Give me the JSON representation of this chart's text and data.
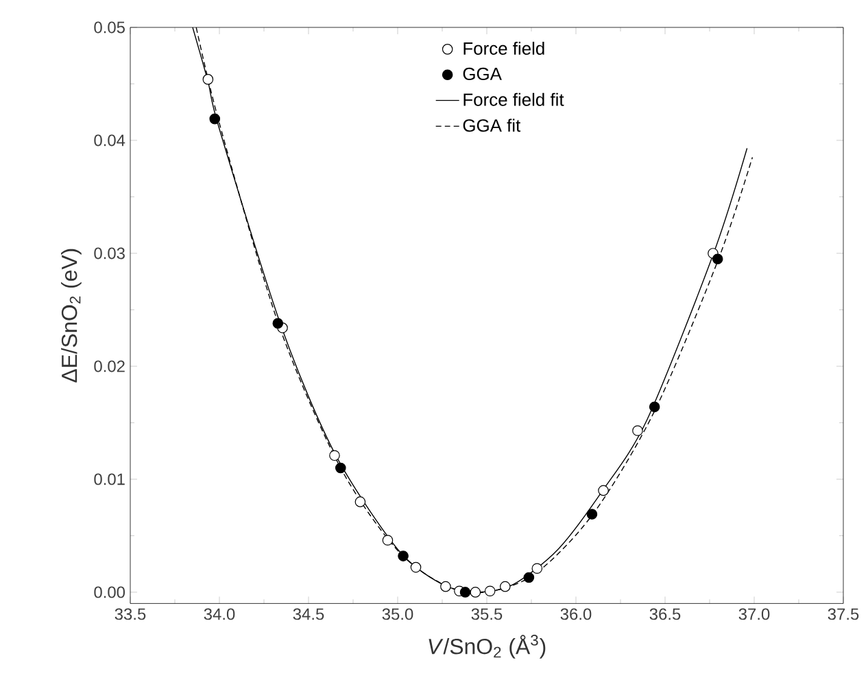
{
  "chart_data": {
    "type": "scatter",
    "xlabel": "*V*/SnO$_{2}$ (Å$^{3}$)",
    "ylabel": "ΔE/SnO$_{2}$ (eV)",
    "xlim": [
      33.5,
      37.5
    ],
    "ylim": [
      -0.001,
      0.05
    ],
    "xticks": [
      {
        "value": 33.5,
        "label": "33.5"
      },
      {
        "value": 34.0,
        "label": "34.0"
      },
      {
        "value": 34.5,
        "label": "34.5"
      },
      {
        "value": 35.0,
        "label": "35.0"
      },
      {
        "value": 35.5,
        "label": "35.5"
      },
      {
        "value": 36.0,
        "label": "36.0"
      },
      {
        "value": 36.5,
        "label": "36.5"
      },
      {
        "value": 37.0,
        "label": "37.0"
      },
      {
        "value": 37.5,
        "label": "37.5"
      }
    ],
    "yticks": [
      {
        "value": 0.0,
        "label": "0.00"
      },
      {
        "value": 0.01,
        "label": "0.01"
      },
      {
        "value": 0.02,
        "label": "0.02"
      },
      {
        "value": 0.03,
        "label": "0.03"
      },
      {
        "value": 0.04,
        "label": "0.04"
      },
      {
        "value": 0.05,
        "label": "0.05"
      }
    ],
    "legend": "top",
    "series": [
      {
        "name": "Force field",
        "type": "scatter",
        "marker": "circle",
        "color": "#ffffff",
        "x": [
          33.936,
          34.354,
          34.646,
          34.79,
          34.944,
          35.102,
          35.269,
          35.346,
          35.436,
          35.518,
          35.603,
          35.782,
          36.154,
          36.346,
          36.769
        ],
        "values": [
          0.0454,
          0.0234,
          0.0121,
          0.008,
          0.0046,
          0.0022,
          0.0005,
          0.0001,
          0.0,
          0.0001,
          0.0005,
          0.0021,
          0.009,
          0.0143,
          0.03
        ]
      },
      {
        "name": "GGA",
        "type": "scatter",
        "marker": "circle",
        "color": "#000000",
        "x": [
          33.974,
          34.328,
          34.68,
          35.031,
          35.379,
          35.736,
          36.09,
          36.441,
          36.795
        ],
        "values": [
          0.0419,
          0.0238,
          0.011,
          0.0032,
          0.0,
          0.0013,
          0.0069,
          0.0164,
          0.0295
        ]
      },
      {
        "name": "Force field fit",
        "type": "line",
        "marker": "none",
        "line_style": "solid",
        "color": "#000000",
        "x": [
          33.85,
          33.936,
          34.0,
          34.35,
          34.65,
          35.0,
          35.25,
          35.45,
          35.65,
          35.9,
          36.15,
          36.4,
          36.77,
          36.96
        ],
        "values": [
          0.05,
          0.0452,
          0.041,
          0.0234,
          0.0122,
          0.0038,
          0.0007,
          0.0,
          0.0007,
          0.0038,
          0.009,
          0.0153,
          0.0299,
          0.0393
        ]
      },
      {
        "name": "GGA fit",
        "type": "line",
        "marker": "none",
        "line_style": "dashed",
        "color": "#000000",
        "x": [
          33.87,
          34.0,
          34.33,
          34.68,
          35.03,
          35.38,
          35.74,
          36.09,
          36.44,
          36.8,
          36.99
        ],
        "values": [
          0.05,
          0.0415,
          0.0238,
          0.011,
          0.0032,
          0.0,
          0.0013,
          0.0068,
          0.016,
          0.0295,
          0.0385
        ]
      }
    ]
  }
}
